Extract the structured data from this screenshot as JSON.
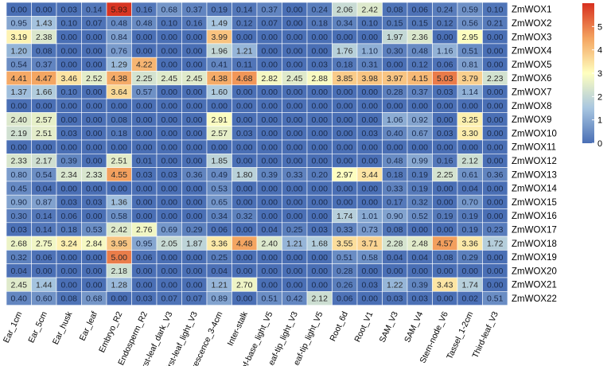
{
  "chart_data": {
    "type": "heatmap",
    "title": "",
    "xlabel": "",
    "ylabel": "",
    "columns": [
      "Ear_1cm",
      "Ear_5cm",
      "Ear_husk",
      "Ear_leaf",
      "Embryo_R2",
      "Endosperm_R2",
      "First-leaf_dark_V3",
      "First-leaf_light_V3",
      "Inflorescence_3-4cm",
      "Inter-stalk",
      "Leaf-base_light_V5",
      "Leaf-tip_light_V3",
      "Leaf-tip_light_V5",
      "Root_6d",
      "Root_V1",
      "SAM_V3",
      "SAM_V4",
      "Stem-node_V6",
      "Tassel_1-2cm",
      "Third-leaf_V3"
    ],
    "rows": [
      "ZmWOX1",
      "ZmWOX2",
      "ZmWOX3",
      "ZmWOX4",
      "ZmWOX5",
      "ZmWOX6",
      "ZmWOX7",
      "ZmWOX8",
      "ZmWOX9",
      "ZmWOX10",
      "ZmWOX11",
      "ZmWOX12",
      "ZmWOX13",
      "ZmWOX14",
      "ZmWOX15",
      "ZmWOX16",
      "ZmWOX17",
      "ZmWOX18",
      "ZmWOX19",
      "ZmWOX20",
      "ZmWOX21",
      "ZmWOX22"
    ],
    "values": [
      [
        0.0,
        0.0,
        0.03,
        0.14,
        5.93,
        0.16,
        0.68,
        0.37,
        0.19,
        0.14,
        0.37,
        0.0,
        0.24,
        2.06,
        2.42,
        0.08,
        0.06,
        0.24,
        0.59,
        0.1
      ],
      [
        0.95,
        1.43,
        0.1,
        0.07,
        0.48,
        0.48,
        0.1,
        0.16,
        1.49,
        0.12,
        0.07,
        0.0,
        0.18,
        0.34,
        0.1,
        0.15,
        0.15,
        0.12,
        0.56,
        0.21
      ],
      [
        3.19,
        2.38,
        0.0,
        0.0,
        0.84,
        0.0,
        0.0,
        0.0,
        3.99,
        0.0,
        0.0,
        0.0,
        0.0,
        0.0,
        0.0,
        1.97,
        2.36,
        0.0,
        2.95,
        0.0
      ],
      [
        1.2,
        0.08,
        0.0,
        0.0,
        0.76,
        0.0,
        0.0,
        0.0,
        1.96,
        1.21,
        0.0,
        0.0,
        0.0,
        1.76,
        1.1,
        0.3,
        0.48,
        1.16,
        0.51,
        0.0
      ],
      [
        0.54,
        0.37,
        0.0,
        0.0,
        1.29,
        4.22,
        0.0,
        0.0,
        0.41,
        0.11,
        0.0,
        0.0,
        0.03,
        0.18,
        0.31,
        0.0,
        0.12,
        0.06,
        0.81,
        0.0
      ],
      [
        4.41,
        4.47,
        3.46,
        2.52,
        4.38,
        2.25,
        2.45,
        2.45,
        4.38,
        4.68,
        2.82,
        2.45,
        2.88,
        3.85,
        3.98,
        3.97,
        4.15,
        5.03,
        3.79,
        2.23
      ],
      [
        1.37,
        1.66,
        0.1,
        0.0,
        3.64,
        0.57,
        0.0,
        0.0,
        1.6,
        0.0,
        0.0,
        0.0,
        0.0,
        0.0,
        0.0,
        0.28,
        0.37,
        0.03,
        1.14,
        0.0
      ],
      [
        0.0,
        0.0,
        0.0,
        0.0,
        0.0,
        0.0,
        0.0,
        0.0,
        0.0,
        0.0,
        0.0,
        0.0,
        0.0,
        0.0,
        0.0,
        0.0,
        0.0,
        0.0,
        0.0,
        0.0
      ],
      [
        2.4,
        2.57,
        0.0,
        0.0,
        0.08,
        0.0,
        0.0,
        0.0,
        2.91,
        0.0,
        0.0,
        0.0,
        0.0,
        0.0,
        0.0,
        1.06,
        0.92,
        0.0,
        3.25,
        0.0
      ],
      [
        2.19,
        2.51,
        0.03,
        0.0,
        0.18,
        0.0,
        0.0,
        0.0,
        2.57,
        0.03,
        0.0,
        0.0,
        0.0,
        0.0,
        0.03,
        0.4,
        0.67,
        0.03,
        3.3,
        0.0
      ],
      [
        0.0,
        0.0,
        0.0,
        0.0,
        0.0,
        0.0,
        0.0,
        0.0,
        0.0,
        0.0,
        0.0,
        0.0,
        0.0,
        0.0,
        0.0,
        0.0,
        0.0,
        0.0,
        0.0,
        0.0
      ],
      [
        2.33,
        2.17,
        0.39,
        0.0,
        2.51,
        0.01,
        0.0,
        0.0,
        1.85,
        0.0,
        0.0,
        0.0,
        0.0,
        0.0,
        0.0,
        0.48,
        0.99,
        0.16,
        2.12,
        0.0
      ],
      [
        0.8,
        0.54,
        2.34,
        2.33,
        4.55,
        0.03,
        0.03,
        0.36,
        0.49,
        1.8,
        0.39,
        0.33,
        0.2,
        2.97,
        3.44,
        0.18,
        0.19,
        2.25,
        0.61,
        0.36
      ],
      [
        0.45,
        0.04,
        0.0,
        0.0,
        0.0,
        0.0,
        0.0,
        0.0,
        0.53,
        0.0,
        0.0,
        0.0,
        0.0,
        0.0,
        0.0,
        0.33,
        0.19,
        0.0,
        0.04,
        0.0
      ],
      [
        0.9,
        0.87,
        0.03,
        0.03,
        1.36,
        0.0,
        0.0,
        0.0,
        0.65,
        0.0,
        0.0,
        0.0,
        0.0,
        0.0,
        0.0,
        0.17,
        0.32,
        0.0,
        0.7,
        0.0
      ],
      [
        0.3,
        0.14,
        0.06,
        0.0,
        0.58,
        0.0,
        0.0,
        0.0,
        0.34,
        0.32,
        0.0,
        0.0,
        0.0,
        1.74,
        1.01,
        0.9,
        0.52,
        0.19,
        0.19,
        0.0
      ],
      [
        0.03,
        0.14,
        0.18,
        0.53,
        2.42,
        2.76,
        0.69,
        0.29,
        0.06,
        0.0,
        0.04,
        0.25,
        0.03,
        0.33,
        0.73,
        0.08,
        0.0,
        0.0,
        0.19,
        0.23
      ],
      [
        2.68,
        2.75,
        3.24,
        2.84,
        3.95,
        0.95,
        2.05,
        1.87,
        3.36,
        4.48,
        2.4,
        1.21,
        1.68,
        3.55,
        3.71,
        2.28,
        2.48,
        4.57,
        3.36,
        1.72
      ],
      [
        0.32,
        0.06,
        0.0,
        0.0,
        5.0,
        0.06,
        0.0,
        0.0,
        0.25,
        0.0,
        0.0,
        0.0,
        0.0,
        0.51,
        0.58,
        0.04,
        0.04,
        0.08,
        0.29,
        0.0
      ],
      [
        0.04,
        0.0,
        0.0,
        0.0,
        2.18,
        0.0,
        0.0,
        0.0,
        0.04,
        0.0,
        0.0,
        0.0,
        0.0,
        0.28,
        0.0,
        0.0,
        0.0,
        0.0,
        0.0,
        0.0
      ],
      [
        2.45,
        1.44,
        0.0,
        0.0,
        1.28,
        0.0,
        0.0,
        0.0,
        1.21,
        2.7,
        0.0,
        0.0,
        0.0,
        0.26,
        0.03,
        1.22,
        0.39,
        3.43,
        1.74,
        0.0
      ],
      [
        0.4,
        0.6,
        0.08,
        0.68,
        0.0,
        0.03,
        0.07,
        0.07,
        0.89,
        0.0,
        0.51,
        0.42,
        2.12,
        0.06,
        0.0,
        0.03,
        0.03,
        0.0,
        0.02,
        0.51
      ]
    ],
    "color_scale": {
      "min": 0,
      "max": 6,
      "stops": [
        {
          "value": 0,
          "color": "#4a6fb5"
        },
        {
          "value": 1.5,
          "color": "#a8c6e0"
        },
        {
          "value": 3,
          "color": "#ffffbf"
        },
        {
          "value": 4.5,
          "color": "#f4a460"
        },
        {
          "value": 6,
          "color": "#d7301f"
        }
      ]
    },
    "legend": {
      "position": "right",
      "ticks": [
        0,
        1,
        2,
        3,
        4,
        5
      ]
    }
  }
}
